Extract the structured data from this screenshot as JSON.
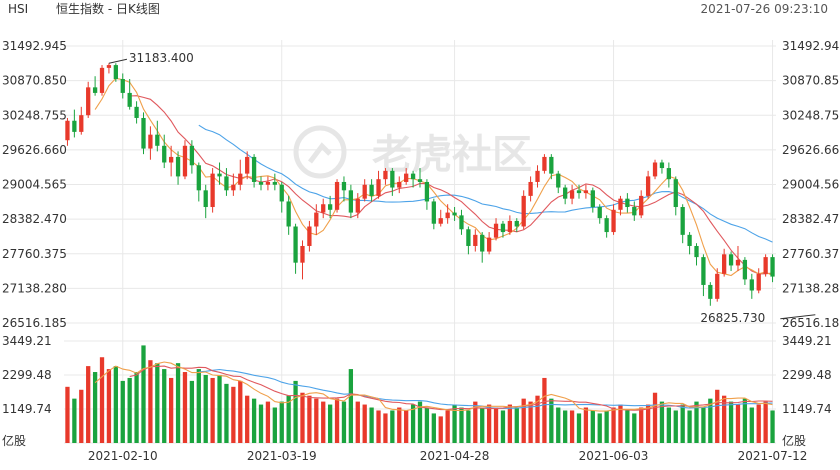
{
  "header": {
    "symbol": "HSI",
    "title": "恒生指数 - 日K线图",
    "timestamp": "2021-07-26 09:23:10"
  },
  "watermark": "老虎社区",
  "colors": {
    "up": "#e8392b",
    "down": "#1aa33e",
    "ma5": "#f0a04b",
    "ma10": "#e0595e",
    "ma20": "#4da3e8",
    "grid": "#e8e8e8",
    "axis_text": "#333333"
  },
  "chart_data": [
    {
      "type": "candlestick",
      "title": "恒生指数 - 日K线图",
      "price_ticks": [
        "31492.945",
        "30870.850",
        "30248.755",
        "29626.660",
        "29004.565",
        "28382.470",
        "27760.375",
        "27138.280",
        "26516.185"
      ],
      "ylim": [
        26516.185,
        31492.945
      ],
      "date_ticks": [
        "2021-02-10",
        "2021-03-19",
        "2021-04-28",
        "2021-06-03",
        "2021-07-12"
      ],
      "annotations": {
        "high_label": "31183.400",
        "low_label": "26825.730",
        "high_value": 31183.4,
        "low_value": 26825.73
      },
      "ma_series": [
        "MA5",
        "MA10",
        "MA20"
      ],
      "candles": [
        [
          29800,
          30150,
          29700,
          30200
        ],
        [
          30150,
          29950,
          29850,
          30350
        ],
        [
          29950,
          30250,
          29900,
          30400
        ],
        [
          30250,
          30750,
          30200,
          30850
        ],
        [
          30750,
          30650,
          30600,
          30950
        ],
        [
          30650,
          31100,
          30600,
          31150
        ],
        [
          31100,
          31150,
          31000,
          31183.4
        ],
        [
          31150,
          30900,
          30850,
          31183.4
        ],
        [
          30900,
          30650,
          30550,
          31000
        ],
        [
          30650,
          30400,
          30350,
          30900
        ],
        [
          30400,
          30200,
          30100,
          30500
        ],
        [
          30200,
          29650,
          29550,
          30300
        ],
        [
          29650,
          29900,
          29450,
          30050
        ],
        [
          29900,
          29700,
          29600,
          30150
        ],
        [
          29700,
          29400,
          29300,
          29900
        ],
        [
          29400,
          29500,
          29150,
          29700
        ],
        [
          29500,
          29150,
          29000,
          29600
        ],
        [
          29150,
          29700,
          29100,
          29800
        ],
        [
          29700,
          29350,
          29200,
          29800
        ],
        [
          29350,
          28900,
          28700,
          29400
        ],
        [
          28900,
          28600,
          28400,
          29000
        ],
        [
          28600,
          29200,
          28500,
          29300
        ],
        [
          29200,
          29150,
          29000,
          29400
        ],
        [
          29150,
          28900,
          28800,
          29300
        ],
        [
          28900,
          29000,
          28800,
          29200
        ],
        [
          29000,
          29200,
          28900,
          29450
        ],
        [
          29200,
          29500,
          29100,
          29600
        ],
        [
          29500,
          29050,
          28950,
          29550
        ],
        [
          29050,
          29000,
          28900,
          29150
        ],
        [
          29000,
          29050,
          28900,
          29150
        ],
        [
          29050,
          29000,
          28900,
          29200
        ],
        [
          29000,
          28700,
          28500,
          29050
        ],
        [
          28700,
          28250,
          28100,
          28800
        ],
        [
          28250,
          27600,
          27400,
          28300
        ],
        [
          27600,
          27900,
          27300,
          28000
        ],
        [
          27900,
          28250,
          27800,
          28350
        ],
        [
          28250,
          28500,
          28100,
          28650
        ],
        [
          28500,
          28650,
          28400,
          28750
        ],
        [
          28650,
          28550,
          28400,
          28800
        ],
        [
          28550,
          29050,
          28500,
          29100
        ],
        [
          29050,
          28900,
          28700,
          29150
        ],
        [
          28900,
          28500,
          28400,
          29000
        ],
        [
          28500,
          28750,
          28400,
          28850
        ],
        [
          28750,
          29000,
          28700,
          29100
        ],
        [
          29000,
          28800,
          28700,
          29100
        ],
        [
          28800,
          29100,
          28750,
          29250
        ],
        [
          29100,
          29250,
          29000,
          29300
        ],
        [
          29250,
          28950,
          28800,
          29300
        ],
        [
          28950,
          29050,
          28850,
          29150
        ],
        [
          29050,
          29200,
          29000,
          29300
        ],
        [
          29200,
          29100,
          28950,
          29250
        ],
        [
          29100,
          29050,
          28950,
          29300
        ],
        [
          29050,
          28700,
          28550,
          29100
        ],
        [
          28700,
          28300,
          28200,
          28750
        ],
        [
          28300,
          28400,
          28250,
          28550
        ],
        [
          28400,
          28500,
          28300,
          28650
        ],
        [
          28500,
          28450,
          28350,
          28600
        ],
        [
          28450,
          28200,
          28100,
          28550
        ],
        [
          28200,
          27900,
          27750,
          28250
        ],
        [
          27900,
          28100,
          27800,
          28200
        ],
        [
          28100,
          27800,
          27600,
          28150
        ],
        [
          27800,
          28050,
          27750,
          28150
        ],
        [
          28050,
          28300,
          28000,
          28400
        ],
        [
          28300,
          28150,
          28050,
          28350
        ],
        [
          28150,
          28350,
          28100,
          28450
        ],
        [
          28350,
          28250,
          28150,
          28400
        ],
        [
          28250,
          28800,
          28200,
          28900
        ],
        [
          28800,
          29050,
          28700,
          29150
        ],
        [
          29050,
          29250,
          28950,
          29350
        ],
        [
          29250,
          29500,
          29200,
          29550
        ],
        [
          29500,
          29200,
          29100,
          29550
        ],
        [
          29200,
          28950,
          28850,
          29250
        ],
        [
          28950,
          28750,
          28650,
          29000
        ],
        [
          28750,
          28900,
          28650,
          29000
        ],
        [
          28900,
          28850,
          28750,
          29000
        ],
        [
          28850,
          28900,
          28750,
          29000
        ],
        [
          28900,
          28600,
          28500,
          28950
        ],
        [
          28600,
          28400,
          28300,
          28650
        ],
        [
          28400,
          28150,
          28050,
          28450
        ],
        [
          28150,
          28550,
          28100,
          28650
        ],
        [
          28550,
          28750,
          28450,
          28800
        ],
        [
          28750,
          28600,
          28500,
          28850
        ],
        [
          28600,
          28450,
          28350,
          28700
        ],
        [
          28450,
          28800,
          28400,
          28900
        ],
        [
          28800,
          29150,
          28750,
          29250
        ],
        [
          29150,
          29400,
          29100,
          29450
        ],
        [
          29400,
          29300,
          29200,
          29450
        ],
        [
          29300,
          29100,
          28950,
          29400
        ],
        [
          29100,
          28600,
          28450,
          29150
        ],
        [
          28600,
          28100,
          27950,
          28650
        ],
        [
          28100,
          27900,
          27750,
          28150
        ],
        [
          27900,
          27700,
          27550,
          27950
        ],
        [
          27700,
          27200,
          27000,
          27750
        ],
        [
          27200,
          26950,
          26825.73,
          27250
        ],
        [
          26950,
          27400,
          26900,
          27500
        ],
        [
          27400,
          27750,
          27350,
          27850
        ],
        [
          27750,
          27550,
          27450,
          27800
        ],
        [
          27550,
          27650,
          27450,
          27900
        ],
        [
          27650,
          27300,
          27200,
          27700
        ],
        [
          27300,
          27100,
          26950,
          27400
        ],
        [
          27100,
          27400,
          27050,
          27500
        ],
        [
          27400,
          27700,
          27350,
          27750
        ],
        [
          27700,
          27350,
          27250,
          27750
        ]
      ]
    },
    {
      "type": "bar",
      "title": "",
      "unit": "亿股",
      "volume_ticks": [
        "3449.21",
        "2299.48",
        "1149.74"
      ],
      "ylim": [
        0,
        3449.21
      ],
      "ma_series": [
        "MA5",
        "MA10",
        "MA20"
      ],
      "volumes": [
        1900,
        1500,
        1800,
        2600,
        2400,
        2900,
        2500,
        2600,
        2100,
        2200,
        2400,
        3300,
        2800,
        2700,
        2500,
        2200,
        2700,
        2400,
        2100,
        2500,
        2300,
        2200,
        2300,
        2000,
        1900,
        2100,
        1600,
        1500,
        1300,
        1400,
        1200,
        1400,
        1600,
        2100,
        1700,
        1600,
        1500,
        1400,
        1300,
        1500,
        1400,
        2500,
        1400,
        1300,
        1200,
        1100,
        1000,
        1100,
        1200,
        1100,
        1300,
        1400,
        1200,
        1000,
        900,
        1100,
        1300,
        1200,
        1100,
        1400,
        1200,
        1300,
        1200,
        1100,
        1300,
        1200,
        1500,
        1400,
        1600,
        2200,
        1500,
        1200,
        1100,
        1100,
        1000,
        1200,
        1100,
        1000,
        1100,
        1200,
        1300,
        1100,
        1000,
        1200,
        1300,
        1700,
        1400,
        1200,
        1100,
        1300,
        1100,
        1400,
        1200,
        1500,
        1800,
        1600,
        1400,
        1300,
        1500,
        1200,
        1300,
        1400,
        1100
      ]
    }
  ]
}
